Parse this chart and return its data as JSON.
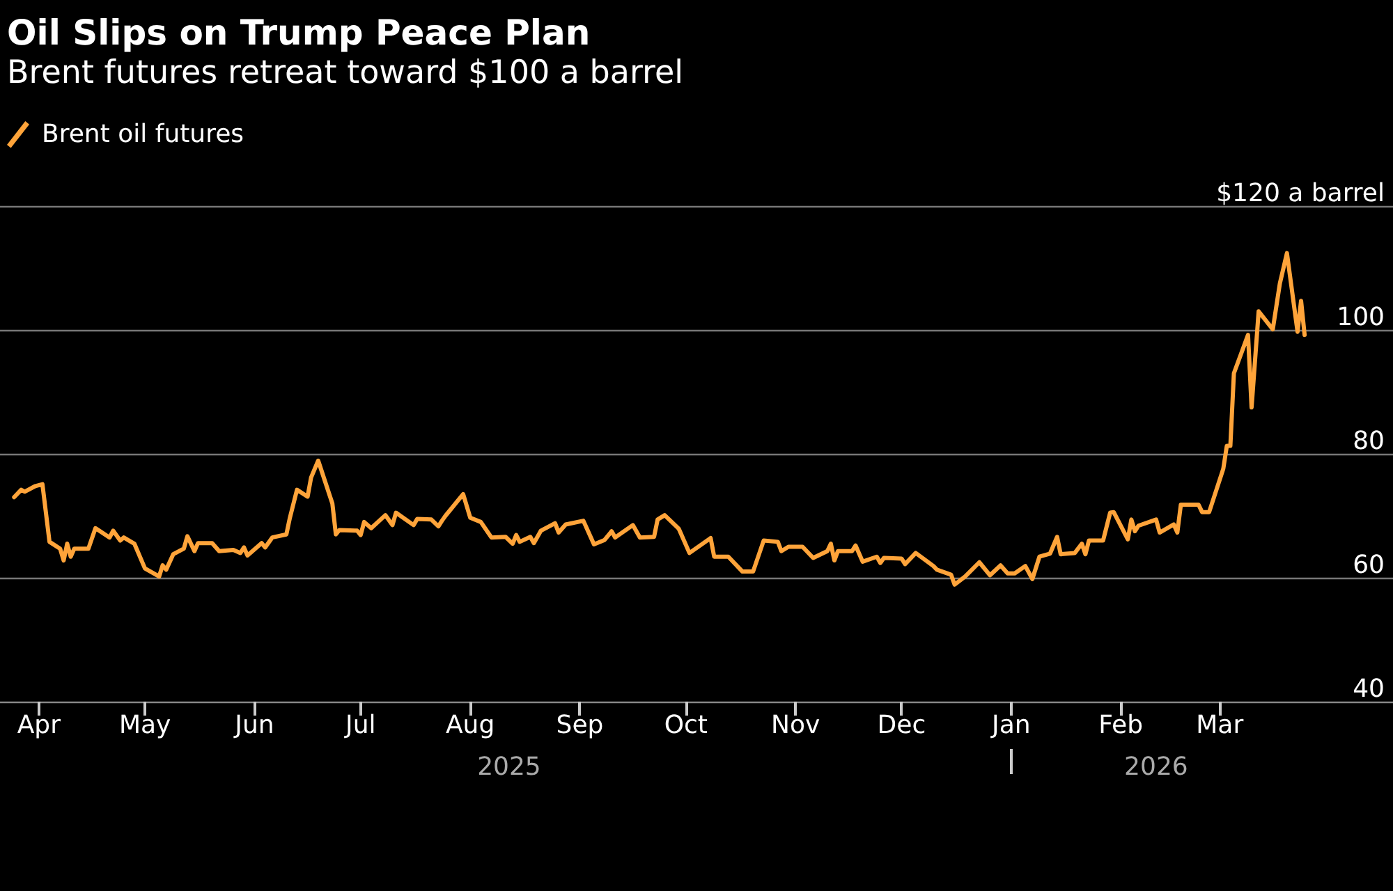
{
  "chart_data": {
    "type": "line",
    "title": "Oil Slips on Trump Peace Plan",
    "subtitle": "Brent futures retreat toward $100 a barrel",
    "x": [
      "2025-03-25",
      "2025-03-27",
      "2025-03-28",
      "2025-03-31",
      "2025-04-02",
      "2025-04-04",
      "2025-04-07",
      "2025-04-08",
      "2025-04-09",
      "2025-04-10",
      "2025-04-11",
      "2025-04-15",
      "2025-04-17",
      "2025-04-21",
      "2025-04-22",
      "2025-04-24",
      "2025-04-25",
      "2025-04-28",
      "2025-05-01",
      "2025-05-05",
      "2025-05-06",
      "2025-05-07",
      "2025-05-09",
      "2025-05-12",
      "2025-05-13",
      "2025-05-15",
      "2025-05-16",
      "2025-05-20",
      "2025-05-22",
      "2025-05-26",
      "2025-05-28",
      "2025-05-29",
      "2025-05-30",
      "2025-06-03",
      "2025-06-04",
      "2025-06-06",
      "2025-06-10",
      "2025-06-11",
      "2025-06-13",
      "2025-06-16",
      "2025-06-17",
      "2025-06-19",
      "2025-06-23",
      "2025-06-24",
      "2025-06-25",
      "2025-06-30",
      "2025-07-01",
      "2025-07-02",
      "2025-07-04",
      "2025-07-08",
      "2025-07-10",
      "2025-07-11",
      "2025-07-16",
      "2025-07-17",
      "2025-07-21",
      "2025-07-23",
      "2025-07-24",
      "2025-07-25",
      "2025-07-30",
      "2025-08-01",
      "2025-08-04",
      "2025-08-07",
      "2025-08-11",
      "2025-08-13",
      "2025-08-14",
      "2025-08-15",
      "2025-08-18",
      "2025-08-19",
      "2025-08-21",
      "2025-08-25",
      "2025-08-26",
      "2025-08-28",
      "2025-09-02",
      "2025-09-05",
      "2025-09-08",
      "2025-09-10",
      "2025-09-11",
      "2025-09-16",
      "2025-09-18",
      "2025-09-22",
      "2025-09-23",
      "2025-09-25",
      "2025-09-29",
      "2025-10-02",
      "2025-10-08",
      "2025-10-09",
      "2025-10-13",
      "2025-10-17",
      "2025-10-20",
      "2025-10-23",
      "2025-10-27",
      "2025-10-28",
      "2025-10-30",
      "2025-11-03",
      "2025-11-06",
      "2025-11-10",
      "2025-11-11",
      "2025-11-12",
      "2025-11-13",
      "2025-11-17",
      "2025-11-18",
      "2025-11-20",
      "2025-11-24",
      "2025-11-25",
      "2025-11-26",
      "2025-12-01",
      "2025-12-02",
      "2025-12-05",
      "2025-12-10",
      "2025-12-11",
      "2025-12-15",
      "2025-12-16",
      "2025-12-19",
      "2025-12-23",
      "2025-12-26",
      "2025-12-29",
      "2025-12-31",
      "2026-01-02",
      "2026-01-05",
      "2026-01-07",
      "2026-01-09",
      "2026-01-12",
      "2026-01-14",
      "2026-01-15",
      "2026-01-19",
      "2026-01-21",
      "2026-01-22",
      "2026-01-23",
      "2026-01-27",
      "2026-01-29",
      "2026-01-30",
      "2026-02-03",
      "2026-02-04",
      "2026-02-05",
      "2026-02-06",
      "2026-02-11",
      "2026-02-12",
      "2026-02-16",
      "2026-02-17",
      "2026-02-18",
      "2026-02-23",
      "2026-02-24",
      "2026-02-26",
      "2026-03-02",
      "2026-03-03",
      "2026-03-04",
      "2026-03-05",
      "2026-03-09",
      "2026-03-10",
      "2026-03-12",
      "2026-03-16",
      "2026-03-18",
      "2026-03-20",
      "2026-03-23",
      "2026-03-24",
      "2026-03-25"
    ],
    "series": [
      {
        "name": "Brent oil futures",
        "color": "#ffa43a",
        "values": [
          73.0,
          74.2,
          73.9,
          74.8,
          75.1,
          65.8,
          64.7,
          62.8,
          65.5,
          63.4,
          64.7,
          64.7,
          68.0,
          66.5,
          67.6,
          66.0,
          66.5,
          65.5,
          61.5,
          60.2,
          62.0,
          61.3,
          63.8,
          64.7,
          66.7,
          64.3,
          65.6,
          65.6,
          64.3,
          64.5,
          64.0,
          64.9,
          63.6,
          65.6,
          64.9,
          66.5,
          67.0,
          69.7,
          74.2,
          73.1,
          76.2,
          78.9,
          72.0,
          67.0,
          67.7,
          67.6,
          66.9,
          69.0,
          68.0,
          70.1,
          68.5,
          70.5,
          68.5,
          69.5,
          69.4,
          68.3,
          69.2,
          70.0,
          73.5,
          69.7,
          69.0,
          66.5,
          66.6,
          65.5,
          66.9,
          65.8,
          66.6,
          65.6,
          67.6,
          68.8,
          67.3,
          68.6,
          69.2,
          65.4,
          66.1,
          67.5,
          66.5,
          68.5,
          66.5,
          66.6,
          69.4,
          70.1,
          67.9,
          64.0,
          66.4,
          63.4,
          63.4,
          61.0,
          61.0,
          66.0,
          65.8,
          64.3,
          65.0,
          65.0,
          63.2,
          64.3,
          65.5,
          62.8,
          64.3,
          64.3,
          65.2,
          62.6,
          63.4,
          62.4,
          63.2,
          63.1,
          62.2,
          64.0,
          61.9,
          61.3,
          60.5,
          58.9,
          60.2,
          62.5,
          60.4,
          62.0,
          60.7,
          60.7,
          61.9,
          59.8,
          63.4,
          63.9,
          66.6,
          63.8,
          64.0,
          65.5,
          63.8,
          66.0,
          66.0,
          70.5,
          70.6,
          66.2,
          69.4,
          67.5,
          68.4,
          69.4,
          67.3,
          68.6,
          67.3,
          71.8,
          71.8,
          70.6,
          70.6,
          77.6,
          81.3,
          81.3,
          93.0,
          99.2,
          87.5,
          103.0,
          100.1,
          107.5,
          112.4,
          99.7,
          104.7,
          99.2
        ]
      }
    ],
    "xlim": [
      "2025-03-21",
      "2026-04-19"
    ],
    "xticks": [
      {
        "value": "2025-04-01",
        "label": "Apr"
      },
      {
        "value": "2025-05-01",
        "label": "May"
      },
      {
        "value": "2025-06-01",
        "label": "Jun"
      },
      {
        "value": "2025-07-01",
        "label": "Jul"
      },
      {
        "value": "2025-08-01",
        "label": "Aug"
      },
      {
        "value": "2025-09-01",
        "label": "Sep"
      },
      {
        "value": "2025-10-01",
        "label": "Oct"
      },
      {
        "value": "2025-11-01",
        "label": "Nov"
      },
      {
        "value": "2025-12-01",
        "label": "Dec"
      },
      {
        "value": "2026-01-01",
        "label": "Jan"
      },
      {
        "value": "2026-02-01",
        "label": "Feb"
      },
      {
        "value": "2026-03-01",
        "label": "Mar"
      }
    ],
    "x2lim": [
      "2025-03-21",
      "2026-04-19"
    ],
    "x2ticks": [
      {
        "value": "2025-08-12",
        "label": "2025"
      },
      {
        "value": "2026-01-01",
        "label": null
      },
      {
        "value": "2026-02-11",
        "label": "2026"
      }
    ],
    "ylim": [
      40,
      120
    ],
    "yticks": [
      40,
      60,
      80,
      100,
      {
        "value": 120,
        "label": "$120 a barrel"
      }
    ],
    "grid": "y",
    "legend": "top left"
  }
}
